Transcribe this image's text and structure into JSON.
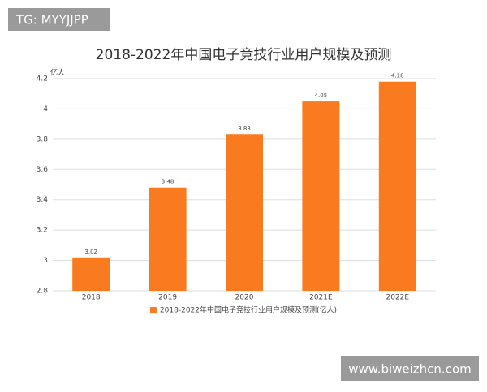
{
  "watermarks": [
    "TG: MYYJJPP",
    "www.biweizhcn.com"
  ],
  "chart_data": {
    "type": "bar",
    "title": "2018-2022年中国电子竞技行业用户规模及预测",
    "y_label": "亿人",
    "categories": [
      "2018",
      "2019",
      "2020",
      "2021E",
      "2022E"
    ],
    "series": [
      {
        "name": "2018-2022年中国电子竞技行业用户规模及预测(亿人)",
        "color": "#fa7b1f",
        "values": [
          3.02,
          3.48,
          3.83,
          4.05,
          4.18
        ]
      }
    ],
    "ylim": [
      2.8,
      4.2
    ],
    "yticks": [
      2.8,
      3,
      3.2,
      3.4,
      3.6,
      3.8,
      4,
      4.2
    ],
    "grid": true
  }
}
